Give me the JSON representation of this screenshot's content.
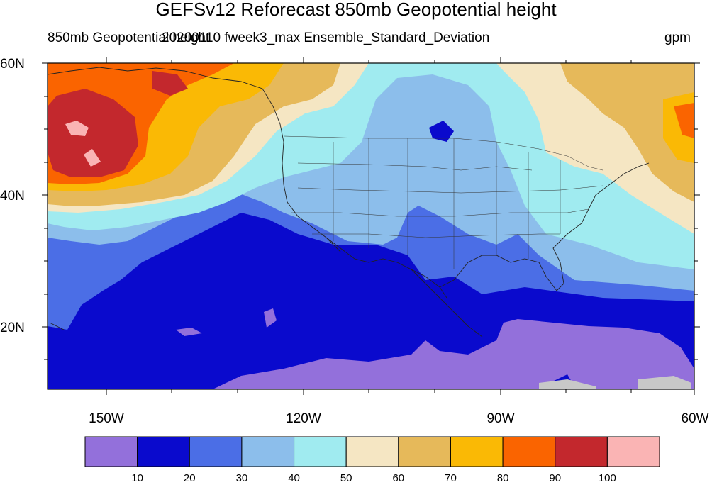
{
  "title": "GEFSv12 Reforecast 850mb Geopotential height",
  "subtitle_left": "850mb Geopotential height",
  "subtitle_center": "20200110 fweek3_max Ensemble_Standard_Deviation",
  "units": "gpm",
  "lat_labels": [
    "60N",
    "40N",
    "20N"
  ],
  "lon_labels": [
    "150W",
    "120W",
    "90W",
    "60W"
  ],
  "colorbar": {
    "colors": [
      "#9370DB",
      "#0A0ACD",
      "#4B6EE6",
      "#8CBEEB",
      "#A0EBF0",
      "#F5E6C3",
      "#E6B95A",
      "#FAB905",
      "#FA6400",
      "#C3282D",
      "#FAB4B4"
    ],
    "labels": [
      "10",
      "20",
      "30",
      "40",
      "50",
      "60",
      "70",
      "80",
      "90",
      "100"
    ]
  },
  "colors": {
    "purple": "#9370DB",
    "blue_dark": "#0A0ACD",
    "blue_mid": "#4B6EE6",
    "blue_light": "#8CBEEB",
    "cyan": "#A0EBF0",
    "beige": "#F5E6C3",
    "tan": "#E6B95A",
    "gold": "#FAB905",
    "orange": "#FA6400",
    "red": "#C3282D",
    "pink": "#FAB4B4"
  }
}
